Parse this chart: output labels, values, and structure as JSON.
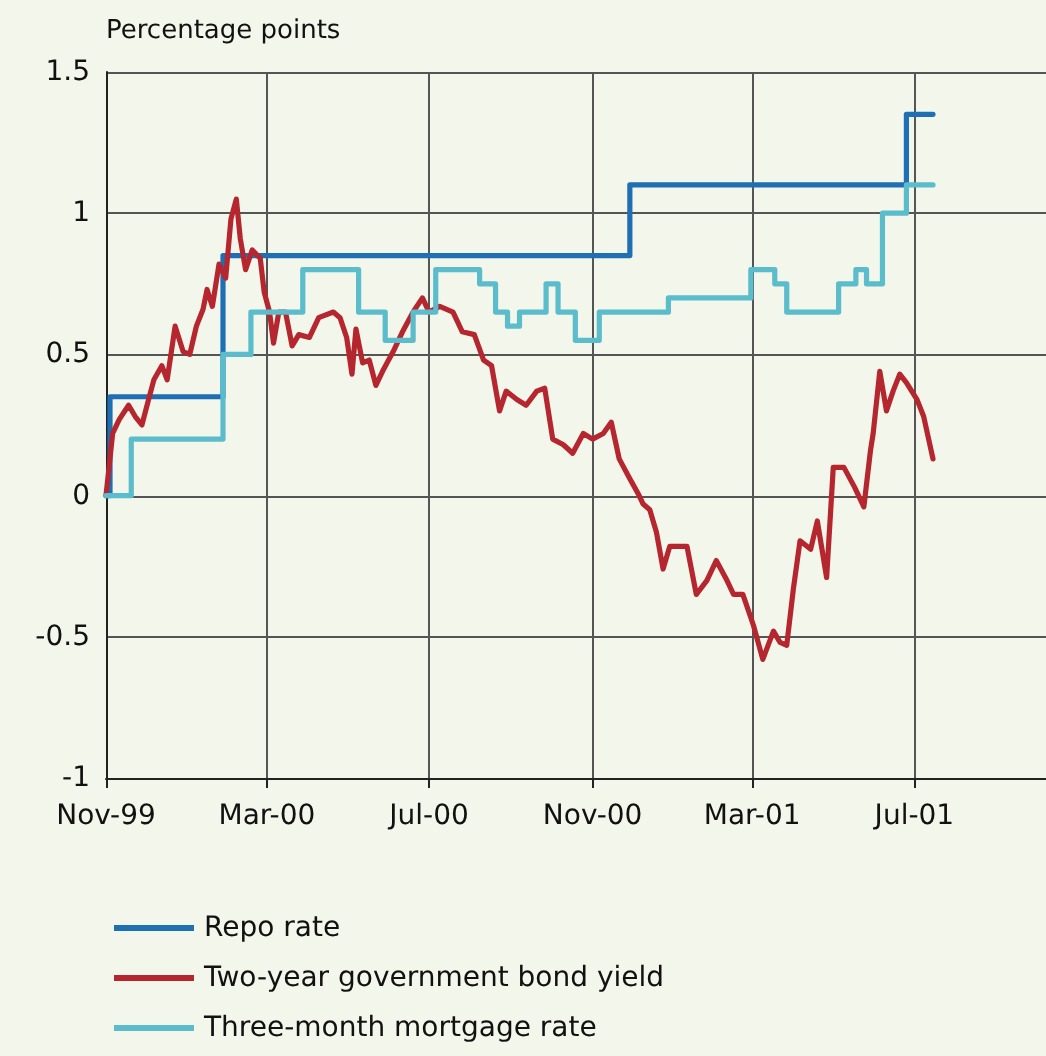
{
  "chart_data": {
    "type": "line",
    "ylabel": "Percentage points",
    "grid": true,
    "legend": "bottom",
    "marker": "none",
    "line_style": "solid",
    "xlim": [
      "1999-11-01",
      "2001-10-08"
    ],
    "xticks": [
      {
        "value": "1999-11-01",
        "label": "Nov-99"
      },
      {
        "value": "2000-03-01",
        "label": "Mar-00"
      },
      {
        "value": "2000-07-01",
        "label": "Jul-00"
      },
      {
        "value": "2000-11-01",
        "label": "Nov-00"
      },
      {
        "value": "2001-03-01",
        "label": "Mar-01"
      },
      {
        "value": "2001-07-01",
        "label": "Jul-01"
      }
    ],
    "ylim": [
      -1,
      1.5
    ],
    "yticks": [
      -1,
      -0.5,
      0,
      0.5,
      1,
      1.5
    ],
    "series": [
      {
        "name": "Repo rate",
        "type": "step",
        "color": "#1f6fb4",
        "x": [
          "1999-11-01",
          "1999-11-04",
          "2000-01-28",
          "2000-11-29",
          "2001-06-25",
          "2001-07-15"
        ],
        "values": [
          0,
          0.35,
          0.85,
          1.1,
          1.35,
          1.35
        ]
      },
      {
        "name": "Two-year government bond yield",
        "color": "#b5262f",
        "x": [
          "1999-11-01",
          "1999-11-06",
          "1999-11-11",
          "1999-11-18",
          "1999-11-23",
          "1999-11-28",
          "1999-12-03",
          "1999-12-07",
          "1999-12-13",
          "1999-12-17",
          "1999-12-23",
          "1999-12-29",
          "2000-01-03",
          "2000-01-08",
          "2000-01-13",
          "2000-01-16",
          "2000-01-20",
          "2000-01-25",
          "2000-01-30",
          "2000-02-03",
          "2000-02-07",
          "2000-02-10",
          "2000-02-14",
          "2000-02-19",
          "2000-02-25",
          "2000-02-28",
          "2000-03-03",
          "2000-03-06",
          "2000-03-10",
          "2000-03-15",
          "2000-03-20",
          "2000-03-25",
          "2000-04-02",
          "2000-04-09",
          "2000-04-20",
          "2000-04-25",
          "2000-04-30",
          "2000-05-04",
          "2000-05-07",
          "2000-05-12",
          "2000-05-17",
          "2000-05-22",
          "2000-05-27",
          "2000-06-04",
          "2000-06-11",
          "2000-06-19",
          "2000-06-26",
          "2000-07-01",
          "2000-07-09",
          "2000-07-19",
          "2000-07-26",
          "2000-08-04",
          "2000-08-11",
          "2000-08-17",
          "2000-08-23",
          "2000-08-28",
          "2000-09-05",
          "2000-09-12",
          "2000-09-20",
          "2000-09-26",
          "2000-10-02",
          "2000-10-10",
          "2000-10-17",
          "2000-10-25",
          "2000-11-01",
          "2000-11-09",
          "2000-11-15",
          "2000-11-21",
          "2000-11-29",
          "2000-12-06",
          "2000-12-09",
          "2000-12-14",
          "2000-12-19",
          "2000-12-24",
          "2000-12-29",
          "2001-01-03",
          "2001-01-11",
          "2001-01-18",
          "2001-01-26",
          "2001-02-02",
          "2001-02-10",
          "2001-02-15",
          "2001-02-22",
          "2001-03-02",
          "2001-03-09",
          "2001-03-17",
          "2001-03-22",
          "2001-03-27",
          "2001-04-01",
          "2001-04-06",
          "2001-04-14",
          "2001-04-19",
          "2001-04-26",
          "2001-05-01",
          "2001-05-09",
          "2001-05-17",
          "2001-05-24",
          "2001-05-29",
          "2001-05-31",
          "2001-06-05",
          "2001-06-10",
          "2001-06-15",
          "2001-06-20",
          "2001-06-25",
          "2001-07-03",
          "2001-07-08",
          "2001-07-15"
        ],
        "values": [
          0,
          0.22,
          0.27,
          0.32,
          0.28,
          0.25,
          0.34,
          0.41,
          0.46,
          0.41,
          0.6,
          0.51,
          0.5,
          0.6,
          0.66,
          0.73,
          0.67,
          0.82,
          0.77,
          0.98,
          1.05,
          0.91,
          0.8,
          0.87,
          0.84,
          0.72,
          0.65,
          0.54,
          0.65,
          0.65,
          0.53,
          0.57,
          0.56,
          0.63,
          0.65,
          0.63,
          0.56,
          0.43,
          0.59,
          0.47,
          0.48,
          0.39,
          0.44,
          0.51,
          0.58,
          0.65,
          0.7,
          0.65,
          0.67,
          0.65,
          0.58,
          0.57,
          0.48,
          0.46,
          0.3,
          0.37,
          0.34,
          0.32,
          0.37,
          0.38,
          0.2,
          0.18,
          0.15,
          0.22,
          0.2,
          0.22,
          0.26,
          0.13,
          0.06,
          0,
          -0.03,
          -0.05,
          -0.13,
          -0.26,
          -0.18,
          -0.18,
          -0.18,
          -0.35,
          -0.3,
          -0.23,
          -0.3,
          -0.35,
          -0.35,
          -0.46,
          -0.58,
          -0.48,
          -0.52,
          -0.53,
          -0.33,
          -0.16,
          -0.19,
          -0.09,
          -0.29,
          0.1,
          0.1,
          0.03,
          -0.04,
          0.16,
          0.22,
          0.44,
          0.3,
          0.37,
          0.43,
          0.4,
          0.34,
          0.28,
          0.13
        ]
      },
      {
        "name": "Three-month mortgage rate",
        "type": "step",
        "color": "#5bbccc",
        "x": [
          "1999-11-01",
          "1999-11-20",
          "2000-01-28",
          "2000-02-18",
          "2000-03-28",
          "2000-05-09",
          "2000-05-29",
          "2000-06-19",
          "2000-07-06",
          "2000-08-08",
          "2000-08-20",
          "2000-08-29",
          "2000-09-07",
          "2000-09-27",
          "2000-10-06",
          "2000-10-19",
          "2000-11-06",
          "2000-12-28",
          "2001-02-28",
          "2001-03-18",
          "2001-03-27",
          "2001-05-05",
          "2001-05-18",
          "2001-05-26",
          "2001-06-07",
          "2001-06-25",
          "2001-07-15"
        ],
        "values": [
          0,
          0.2,
          0.5,
          0.65,
          0.8,
          0.65,
          0.55,
          0.65,
          0.8,
          0.75,
          0.65,
          0.6,
          0.65,
          0.75,
          0.65,
          0.55,
          0.65,
          0.7,
          0.8,
          0.75,
          0.65,
          0.75,
          0.8,
          0.75,
          1.0,
          1.1,
          1.1
        ]
      }
    ]
  }
}
